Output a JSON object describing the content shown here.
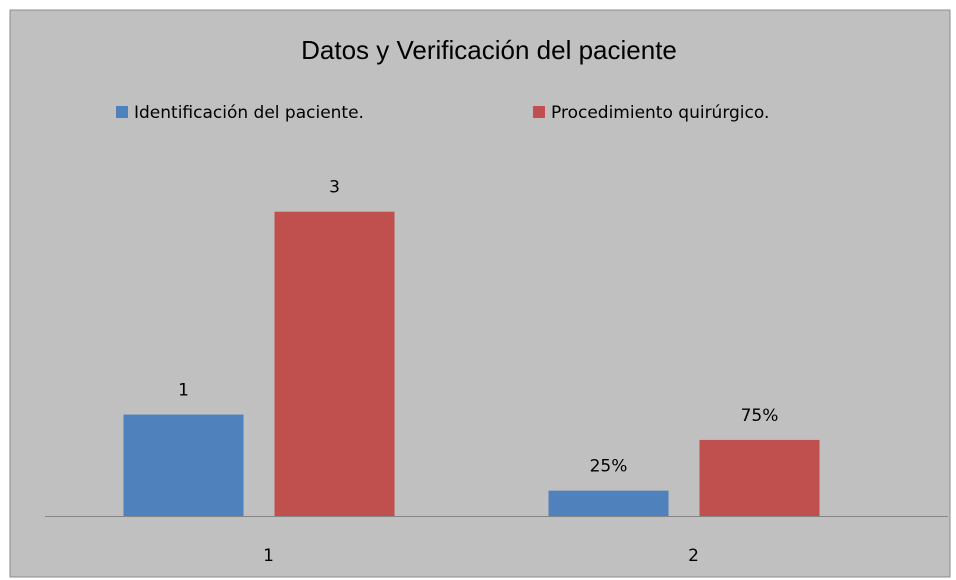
{
  "chart_data": {
    "type": "bar",
    "title": "Datos y Verificación del paciente",
    "categories": [
      "1",
      "2"
    ],
    "series": [
      {
        "name": "Identificación del paciente.",
        "color": "#4f81bd",
        "values": [
          1,
          0.25
        ],
        "value_labels": [
          "1",
          "25%"
        ]
      },
      {
        "name": "Procedimiento quirúrgico.",
        "color": "#c0504d",
        "values": [
          3,
          0.75
        ],
        "value_labels": [
          "3",
          "75%"
        ]
      }
    ],
    "ylim": [
      0,
      3.5
    ]
  }
}
